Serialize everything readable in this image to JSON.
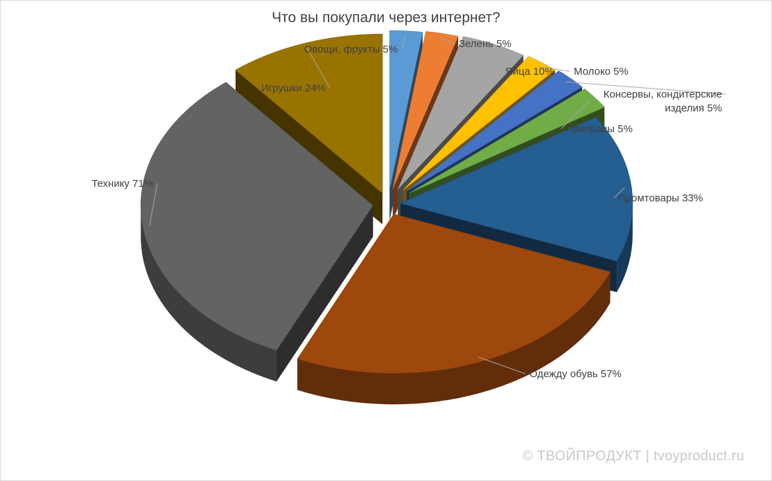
{
  "watermark": "© ТВОЙПРОДУКТ | tvoyproduct.ru",
  "chart_data": {
    "type": "pie",
    "title": "Что вы покупали через интернет?",
    "legend": "none",
    "data_labels": "outside with leader lines",
    "unit": "%",
    "slices": [
      {
        "label": "Овощи, фрукты 5%",
        "category": "Овощи, фрукты",
        "value": 5,
        "color": "#5b9bd5"
      },
      {
        "label": "Зелень 5%",
        "category": "Зелень",
        "value": 5,
        "color": "#ed7d31"
      },
      {
        "label": "Яйца 10%",
        "category": "Яйца",
        "value": 10,
        "color": "#a5a5a5"
      },
      {
        "label": "Молоко 5%",
        "category": "Молоко",
        "value": 5,
        "color": "#ffc000"
      },
      {
        "label": "Консервы, кондитерские изделия 5%",
        "label_lines": [
          "Консервы, кондитерские",
          "изделия 5%"
        ],
        "category": "Консервы, кондитерские изделия",
        "value": 5,
        "color": "#4472c4"
      },
      {
        "label": "Приправы 5%",
        "category": "Приправы",
        "value": 5,
        "color": "#70ad47"
      },
      {
        "label": "Промтовары 33%",
        "category": "Промтовары",
        "value": 33,
        "color": "#255e91"
      },
      {
        "label": "Одежду обувь 57%",
        "category": "Одежду обувь",
        "value": 57,
        "color": "#9e480e"
      },
      {
        "label": "Технику 71%",
        "category": "Технику",
        "value": 71,
        "color": "#636363"
      },
      {
        "label": "Игрушки 24%",
        "category": "Игрушки",
        "value": 24,
        "color": "#997300"
      }
    ]
  }
}
